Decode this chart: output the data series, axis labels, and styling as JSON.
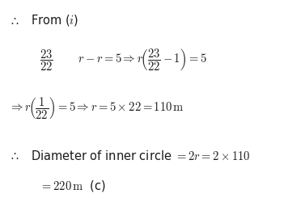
{
  "background_color": "#ffffff",
  "figsize": [
    3.77,
    2.5
  ],
  "dpi": 100,
  "text_color": "#1a1a1a"
}
